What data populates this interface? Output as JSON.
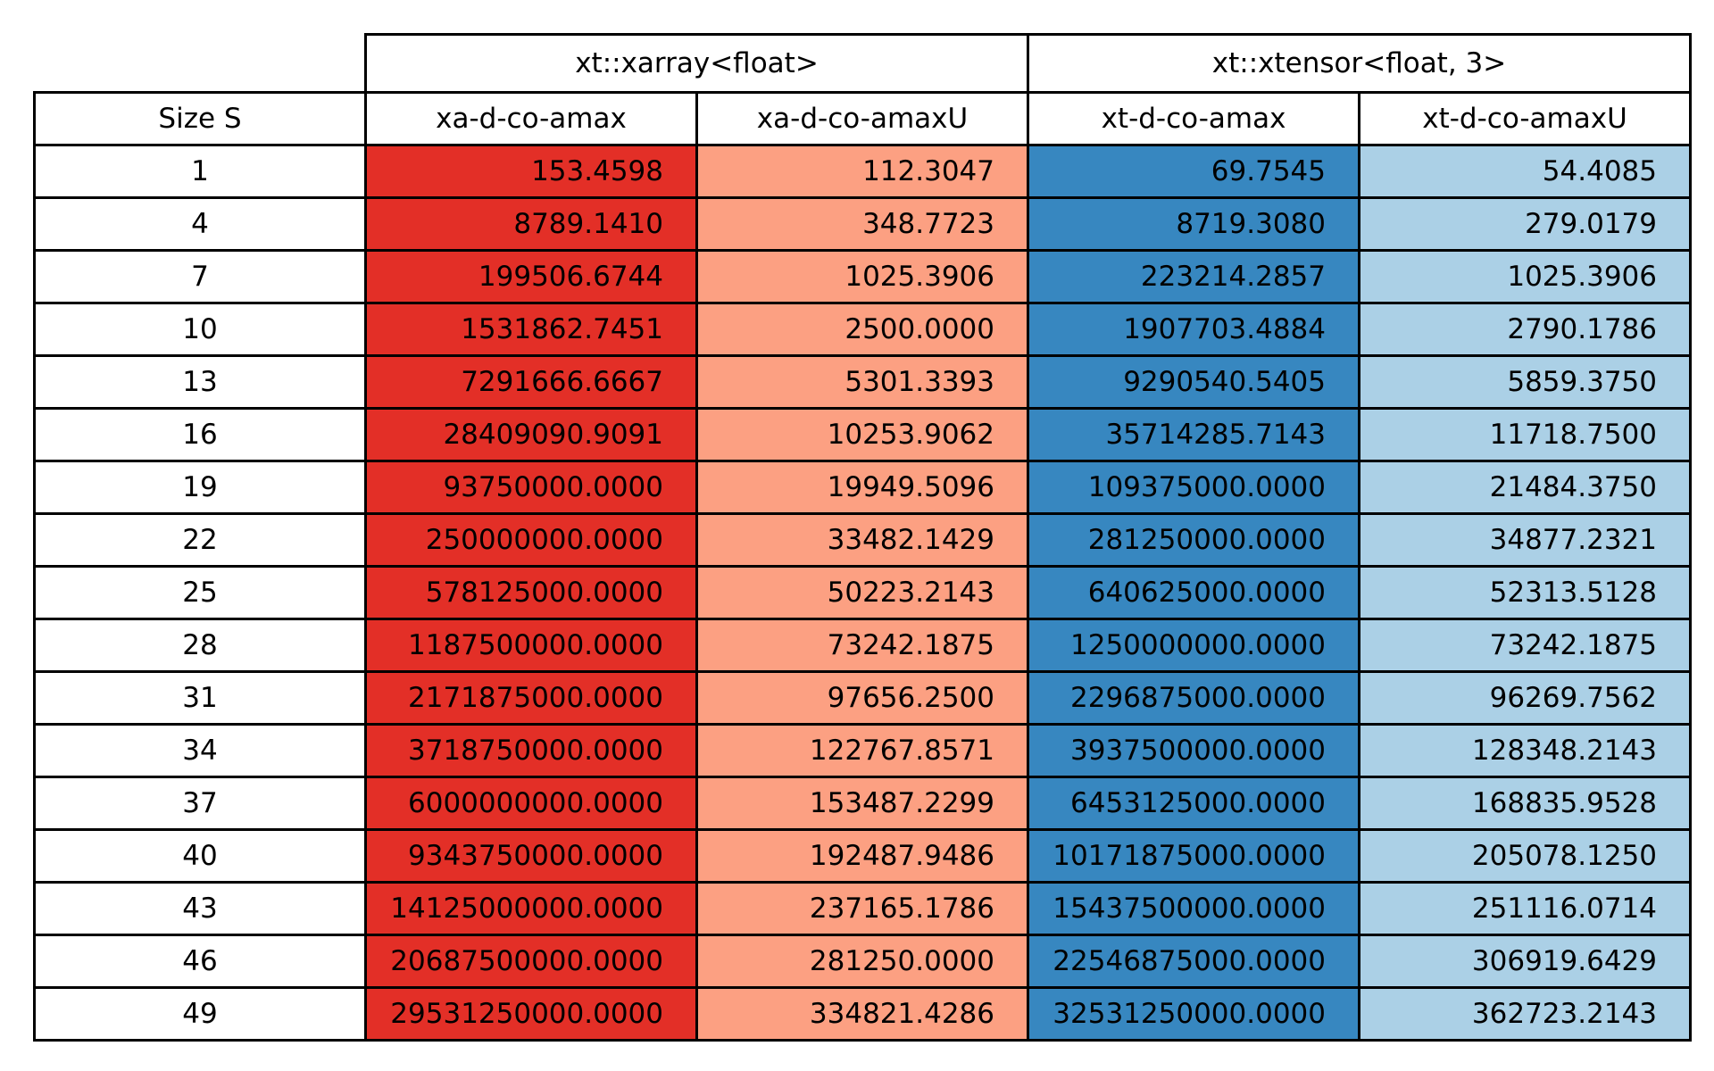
{
  "chart_data": {
    "type": "table",
    "column_groups": [
      {
        "label": "xt::xarray<float>",
        "span": 2
      },
      {
        "label": "xt::xtensor<float, 3>",
        "span": 2
      }
    ],
    "headers": [
      "Size S",
      "xa-d-co-amax",
      "xa-d-co-amaxU",
      "xt-d-co-amax",
      "xt-d-co-amaxU"
    ],
    "column_colors": [
      "#ffffff",
      "#e32f27",
      "#fca082",
      "#3787c0",
      "#abd0e6"
    ],
    "rows": [
      [
        "1",
        "153.4598",
        "112.3047",
        "69.7545",
        "54.4085"
      ],
      [
        "4",
        "8789.1410",
        "348.7723",
        "8719.3080",
        "279.0179"
      ],
      [
        "7",
        "199506.6744",
        "1025.3906",
        "223214.2857",
        "1025.3906"
      ],
      [
        "10",
        "1531862.7451",
        "2500.0000",
        "1907703.4884",
        "2790.1786"
      ],
      [
        "13",
        "7291666.6667",
        "5301.3393",
        "9290540.5405",
        "5859.3750"
      ],
      [
        "16",
        "28409090.9091",
        "10253.9062",
        "35714285.7143",
        "11718.7500"
      ],
      [
        "19",
        "93750000.0000",
        "19949.5096",
        "109375000.0000",
        "21484.3750"
      ],
      [
        "22",
        "250000000.0000",
        "33482.1429",
        "281250000.0000",
        "34877.2321"
      ],
      [
        "25",
        "578125000.0000",
        "50223.2143",
        "640625000.0000",
        "52313.5128"
      ],
      [
        "28",
        "1187500000.0000",
        "73242.1875",
        "1250000000.0000",
        "73242.1875"
      ],
      [
        "31",
        "2171875000.0000",
        "97656.2500",
        "2296875000.0000",
        "96269.7562"
      ],
      [
        "34",
        "3718750000.0000",
        "122767.8571",
        "3937500000.0000",
        "128348.2143"
      ],
      [
        "37",
        "6000000000.0000",
        "153487.2299",
        "6453125000.0000",
        "168835.9528"
      ],
      [
        "40",
        "9343750000.0000",
        "192487.9486",
        "10171875000.0000",
        "205078.1250"
      ],
      [
        "43",
        "14125000000.0000",
        "237165.1786",
        "15437500000.0000",
        "251116.0714"
      ],
      [
        "46",
        "20687500000.0000",
        "281250.0000",
        "22546875000.0000",
        "306919.6429"
      ],
      [
        "49",
        "29531250000.0000",
        "334821.4286",
        "32531250000.0000",
        "362723.2143"
      ]
    ]
  }
}
